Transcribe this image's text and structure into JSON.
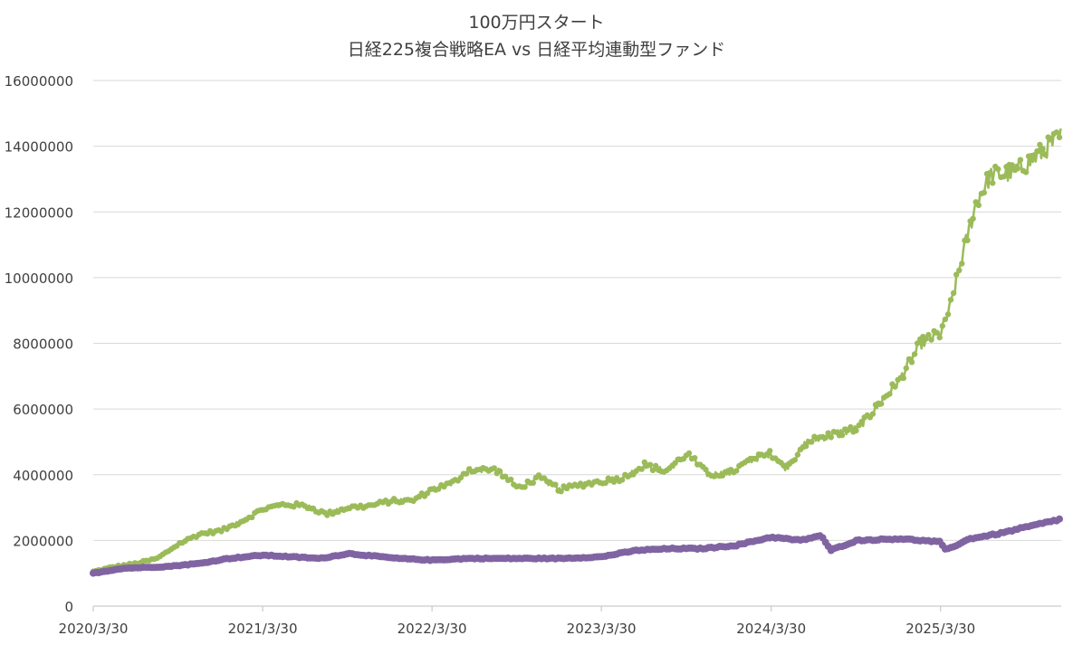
{
  "chart_data": {
    "type": "line",
    "title": "100万円スタート",
    "subtitle": "日経225複合戦略EA vs 日経平均連動型ファンド",
    "xlabel": "",
    "ylabel": "",
    "x_ticks": [
      "2020/3/30",
      "2021/3/30",
      "2022/3/30",
      "2023/3/30",
      "2024/3/30",
      "2025/3/30"
    ],
    "x_range": [
      "2020-03-30",
      "2025-12-15"
    ],
    "ylim": [
      0,
      16000000
    ],
    "y_ticks": [
      "0",
      "2000000",
      "4000000",
      "6000000",
      "8000000",
      "10000000",
      "12000000",
      "14000000",
      "16000000"
    ],
    "grid": "horizontal",
    "legend": "none",
    "colors": {
      "ea": "#9bbb59",
      "fund": "#8064a2",
      "grid": "#d9d9d9",
      "axis": "#bfbfbf",
      "text": "#404040"
    },
    "series": [
      {
        "color": "#9bbb59",
        "points": [
          [
            "2020-03-30",
            1050000
          ],
          [
            "2020-05-15",
            1200000
          ],
          [
            "2020-07-01",
            1300000
          ],
          [
            "2020-08-15",
            1450000
          ],
          [
            "2020-10-01",
            1900000
          ],
          [
            "2020-11-15",
            2200000
          ],
          [
            "2021-01-01",
            2300000
          ],
          [
            "2021-02-15",
            2600000
          ],
          [
            "2021-03-30",
            2950000
          ],
          [
            "2021-05-15",
            3100000
          ],
          [
            "2021-07-01",
            3050000
          ],
          [
            "2021-08-15",
            2800000
          ],
          [
            "2021-10-01",
            3000000
          ],
          [
            "2021-11-15",
            3050000
          ],
          [
            "2022-01-01",
            3200000
          ],
          [
            "2022-02-15",
            3200000
          ],
          [
            "2022-03-30",
            3550000
          ],
          [
            "2022-05-15",
            3750000
          ],
          [
            "2022-06-15",
            4150000
          ],
          [
            "2022-08-15",
            4150000
          ],
          [
            "2022-10-01",
            3600000
          ],
          [
            "2022-11-15",
            3900000
          ],
          [
            "2023-01-01",
            3550000
          ],
          [
            "2023-02-15",
            3700000
          ],
          [
            "2023-03-30",
            3800000
          ],
          [
            "2023-05-15",
            3900000
          ],
          [
            "2023-07-01",
            4300000
          ],
          [
            "2023-08-15",
            4100000
          ],
          [
            "2023-10-01",
            4650000
          ],
          [
            "2023-11-15",
            4000000
          ],
          [
            "2024-01-01",
            4050000
          ],
          [
            "2024-02-15",
            4450000
          ],
          [
            "2024-03-30",
            4650000
          ],
          [
            "2024-05-01",
            4200000
          ],
          [
            "2024-06-15",
            5000000
          ],
          [
            "2024-08-15",
            5250000
          ],
          [
            "2024-10-01",
            5400000
          ],
          [
            "2024-11-15",
            6100000
          ],
          [
            "2025-01-01",
            6900000
          ],
          [
            "2025-02-15",
            8000000
          ],
          [
            "2025-03-30",
            8300000
          ],
          [
            "2025-04-20",
            9100000
          ],
          [
            "2025-05-15",
            10600000
          ],
          [
            "2025-06-15",
            12300000
          ],
          [
            "2025-07-15",
            13100000
          ],
          [
            "2025-09-01",
            13200000
          ],
          [
            "2025-10-15",
            13600000
          ],
          [
            "2025-12-15",
            14300000
          ]
        ]
      },
      {
        "color": "#8064a2",
        "points": [
          [
            "2020-03-30",
            1000000
          ],
          [
            "2020-06-01",
            1150000
          ],
          [
            "2020-09-01",
            1200000
          ],
          [
            "2020-11-15",
            1300000
          ],
          [
            "2021-01-15",
            1450000
          ],
          [
            "2021-03-30",
            1550000
          ],
          [
            "2021-08-01",
            1450000
          ],
          [
            "2021-10-01",
            1600000
          ],
          [
            "2022-01-15",
            1450000
          ],
          [
            "2022-03-30",
            1400000
          ],
          [
            "2022-06-15",
            1450000
          ],
          [
            "2022-10-01",
            1450000
          ],
          [
            "2023-01-01",
            1450000
          ],
          [
            "2023-03-30",
            1500000
          ],
          [
            "2023-06-15",
            1700000
          ],
          [
            "2023-09-01",
            1750000
          ],
          [
            "2023-11-01",
            1750000
          ],
          [
            "2024-01-15",
            1850000
          ],
          [
            "2024-03-30",
            2100000
          ],
          [
            "2024-06-01",
            2000000
          ],
          [
            "2024-07-15",
            2150000
          ],
          [
            "2024-08-05",
            1700000
          ],
          [
            "2024-10-01",
            2000000
          ],
          [
            "2025-01-01",
            2050000
          ],
          [
            "2025-03-30",
            1950000
          ],
          [
            "2025-04-10",
            1700000
          ],
          [
            "2025-06-01",
            2050000
          ],
          [
            "2025-08-01",
            2200000
          ],
          [
            "2025-10-15",
            2450000
          ],
          [
            "2025-12-15",
            2650000
          ]
        ]
      }
    ]
  }
}
